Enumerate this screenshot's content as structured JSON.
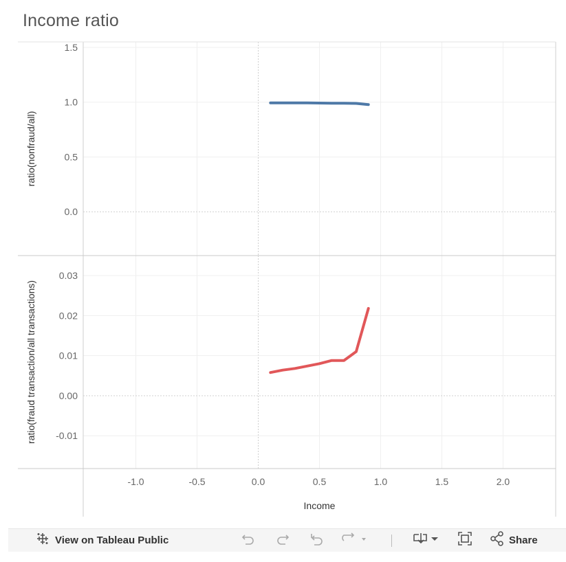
{
  "chart_data": {
    "title": "Income ratio",
    "type": "line",
    "xlabel": "Income",
    "x_ticks": [
      -1.0,
      -0.5,
      0.0,
      0.5,
      1.0,
      1.5,
      2.0
    ],
    "x_tick_labels": [
      "-1.0",
      "-0.5",
      "0.0",
      "0.5",
      "1.0",
      "1.5",
      "2.0"
    ],
    "xlim": [
      -1.43,
      2.43
    ],
    "grid": true,
    "panels": [
      {
        "ylabel": "ratio(nonfraud/all)",
        "ylim": [
          -0.4,
          1.55
        ],
        "y_ticks": [
          0.0,
          0.5,
          1.0,
          1.5
        ],
        "y_tick_labels": [
          "0.0",
          "0.5",
          "1.0",
          "1.5"
        ],
        "series": [
          {
            "color": "#4e79a7",
            "x": [
              0.1,
              0.2,
              0.3,
              0.4,
              0.5,
              0.6,
              0.7,
              0.8,
              0.9
            ],
            "y": [
              0.994,
              0.994,
              0.993,
              0.993,
              0.992,
              0.991,
              0.991,
              0.989,
              0.978
            ]
          }
        ]
      },
      {
        "ylabel": "ratio(fraud transaction/all transactions)",
        "ylim": [
          -0.0182,
          0.035
        ],
        "y_ticks": [
          -0.01,
          0.0,
          0.01,
          0.02,
          0.03
        ],
        "y_tick_labels": [
          "-0.01",
          "0.00",
          "0.01",
          "0.02",
          "0.03"
        ],
        "series": [
          {
            "color": "#e15759",
            "x": [
              0.1,
              0.2,
              0.3,
              0.4,
              0.5,
              0.6,
              0.7,
              0.8,
              0.9
            ],
            "y": [
              0.0058,
              0.0064,
              0.0068,
              0.0074,
              0.008,
              0.0088,
              0.0088,
              0.011,
              0.0218
            ]
          }
        ]
      }
    ]
  },
  "toolbar": {
    "view_label": "View on Tableau Public",
    "share_label": "Share",
    "icons": [
      "tableau-logo-icon",
      "undo-icon",
      "redo-icon",
      "revert-icon",
      "refresh-icon",
      "download-icon",
      "fullscreen-icon",
      "share-icon"
    ]
  }
}
